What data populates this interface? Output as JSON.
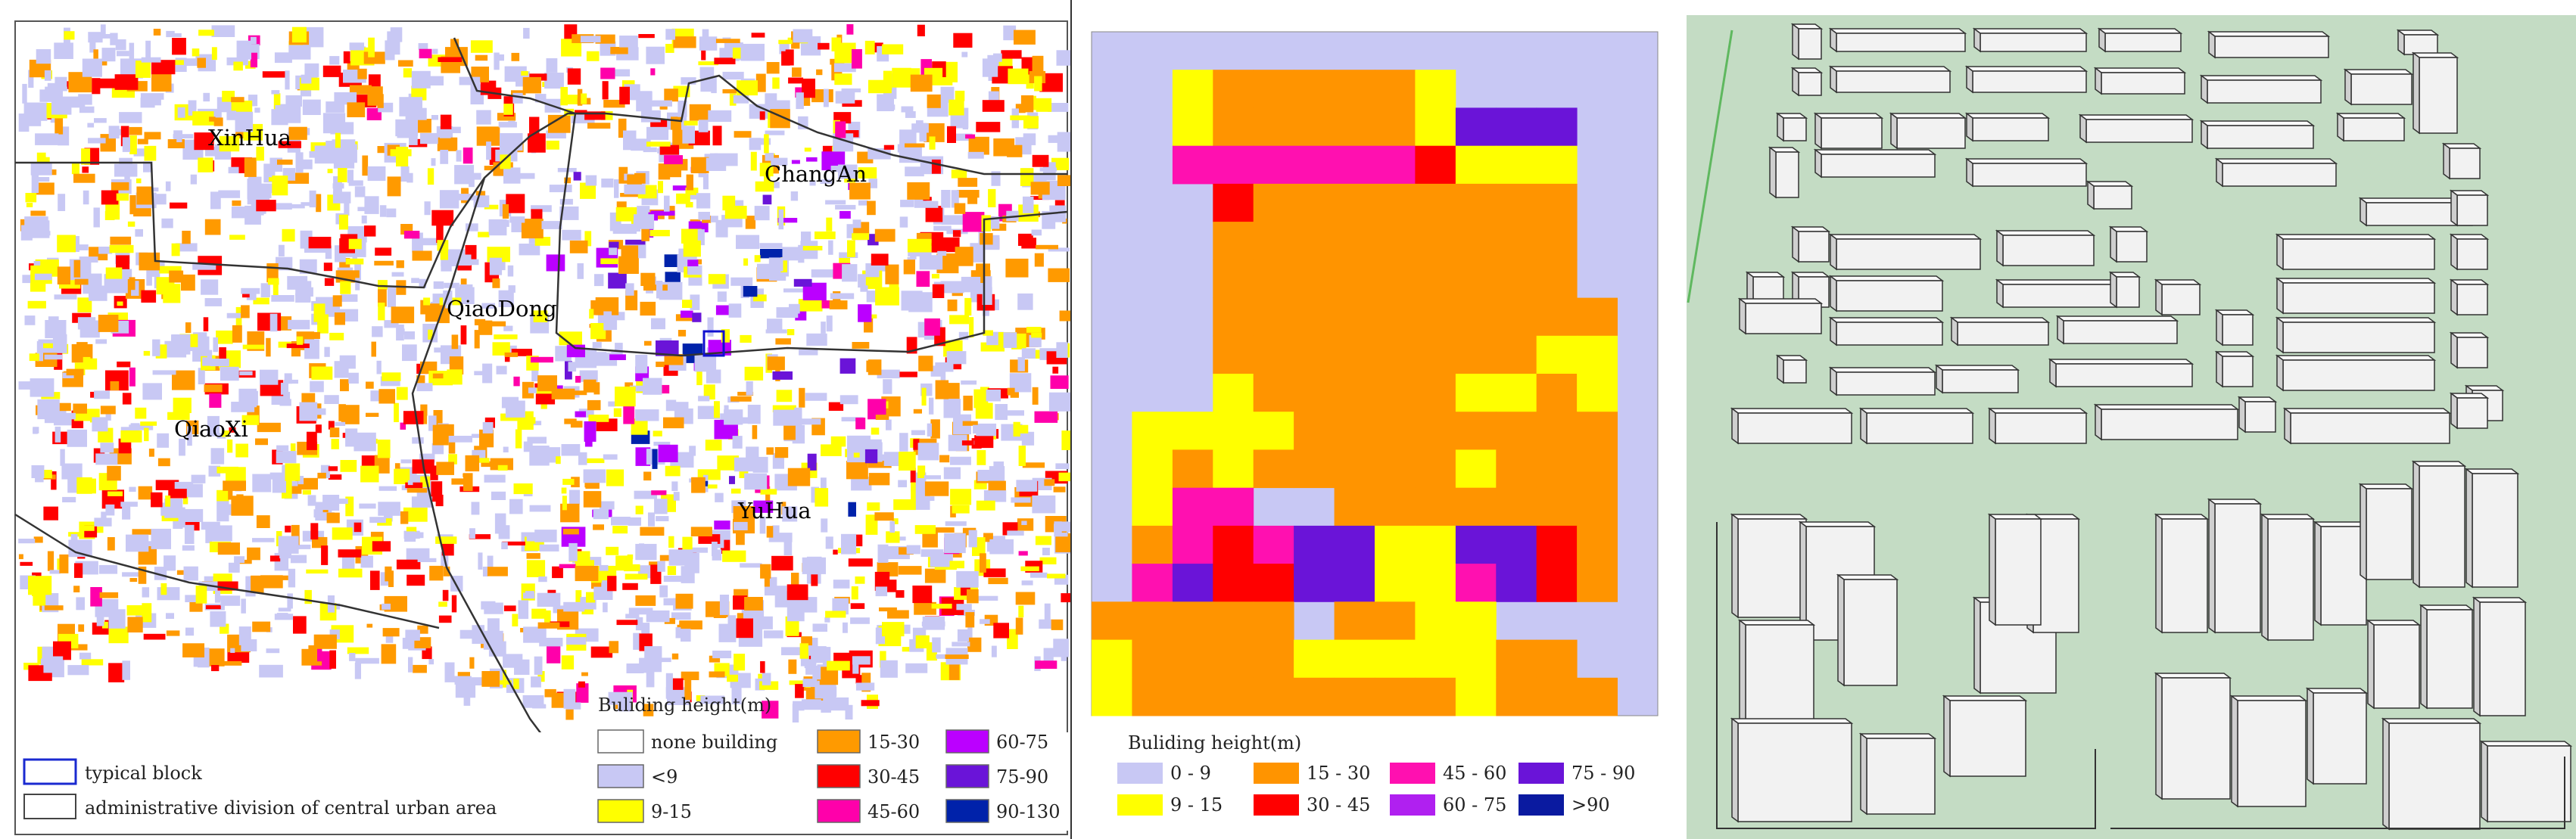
{
  "map": {
    "districts": [
      {
        "name": "XinHua"
      },
      {
        "name": "ChangAn"
      },
      {
        "name": "QiaoDong"
      },
      {
        "name": "QiaoXi"
      },
      {
        "name": "YuHua"
      }
    ],
    "legend_left": {
      "typical_block": "typical block",
      "admin_division": "administrative division of central urban area"
    },
    "legend_height": {
      "title": "Buliding height(m)",
      "classes": [
        {
          "label": "none building",
          "color": "#ffffff"
        },
        {
          "label": "<9",
          "color": "#c8c8f4"
        },
        {
          "label": "9-15",
          "color": "#ffff00"
        },
        {
          "label": "15-30",
          "color": "#ff9a00"
        },
        {
          "label": "30-45",
          "color": "#ff0000"
        },
        {
          "label": "45-60",
          "color": "#ff00aa"
        },
        {
          "label": "60-75",
          "color": "#bb00ff"
        },
        {
          "label": "75-90",
          "color": "#6a14d8"
        },
        {
          "label": "90-130",
          "color": "#0022aa"
        }
      ]
    }
  },
  "block": {
    "legend": {
      "title": "Buliding height(m)",
      "classes": [
        {
          "label": "0 - 9",
          "color": "#c8c8f4"
        },
        {
          "label": "9 - 15",
          "color": "#ffff00"
        },
        {
          "label": "15 - 30",
          "color": "#ff9400"
        },
        {
          "label": "30 - 45",
          "color": "#ff0000"
        },
        {
          "label": "45 - 60",
          "color": "#ff10b0"
        },
        {
          "label": "60 - 75",
          "color": "#b020f0"
        },
        {
          "label": "75 - 90",
          "color": "#6a14d8"
        },
        {
          "label": ">90",
          "color": "#0a1aa0"
        }
      ]
    }
  },
  "colors": {
    "model_ground": "#c4dcc4",
    "model_building": "#f2f2f2"
  }
}
